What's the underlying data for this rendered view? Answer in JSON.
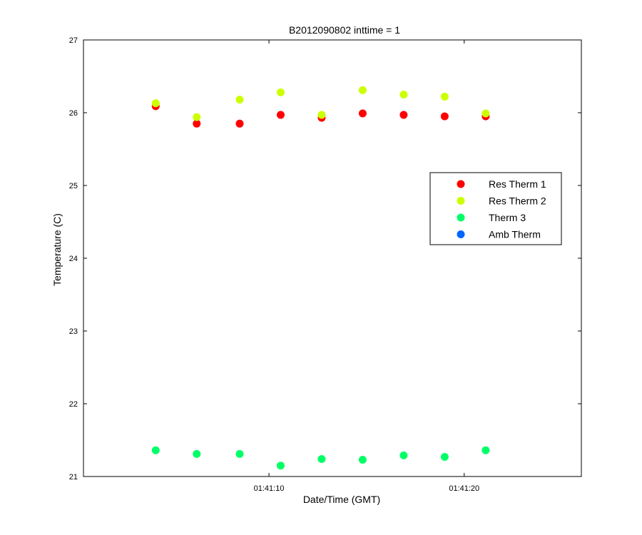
{
  "chart_data": {
    "type": "scatter",
    "title": "B2012090802 inttime = 1",
    "xlabel": "Date/Time (GMT)",
    "ylabel": "Temperature (C)",
    "x_unit": "seconds",
    "xlim": [
      0.5,
      26.0
    ],
    "ylim": [
      21,
      27
    ],
    "xticks": [
      {
        "value": 10,
        "label": "01:41:10"
      },
      {
        "value": 20,
        "label": "01:41:20"
      }
    ],
    "yticks": [
      21,
      22,
      23,
      24,
      25,
      26,
      27
    ],
    "grid": false,
    "legend_position": "right",
    "x": [
      4.2,
      6.3,
      8.5,
      10.6,
      12.7,
      14.8,
      16.9,
      19.0,
      21.1
    ],
    "series": [
      {
        "name": "Res Therm 1",
        "color": "#ff0000",
        "values": [
          26.09,
          25.85,
          25.85,
          25.97,
          25.93,
          25.99,
          25.97,
          25.95,
          25.95
        ]
      },
      {
        "name": "Res Therm 2",
        "color": "#ccff00",
        "values": [
          26.13,
          25.94,
          26.18,
          26.28,
          25.97,
          26.31,
          26.25,
          26.22,
          25.99
        ]
      },
      {
        "name": "Therm 3",
        "color": "#00ff66",
        "values": [
          21.36,
          21.31,
          21.31,
          21.15,
          21.24,
          21.23,
          21.29,
          21.27,
          21.36
        ]
      },
      {
        "name": "Amb Therm",
        "color": "#0066ff",
        "values": []
      }
    ]
  }
}
